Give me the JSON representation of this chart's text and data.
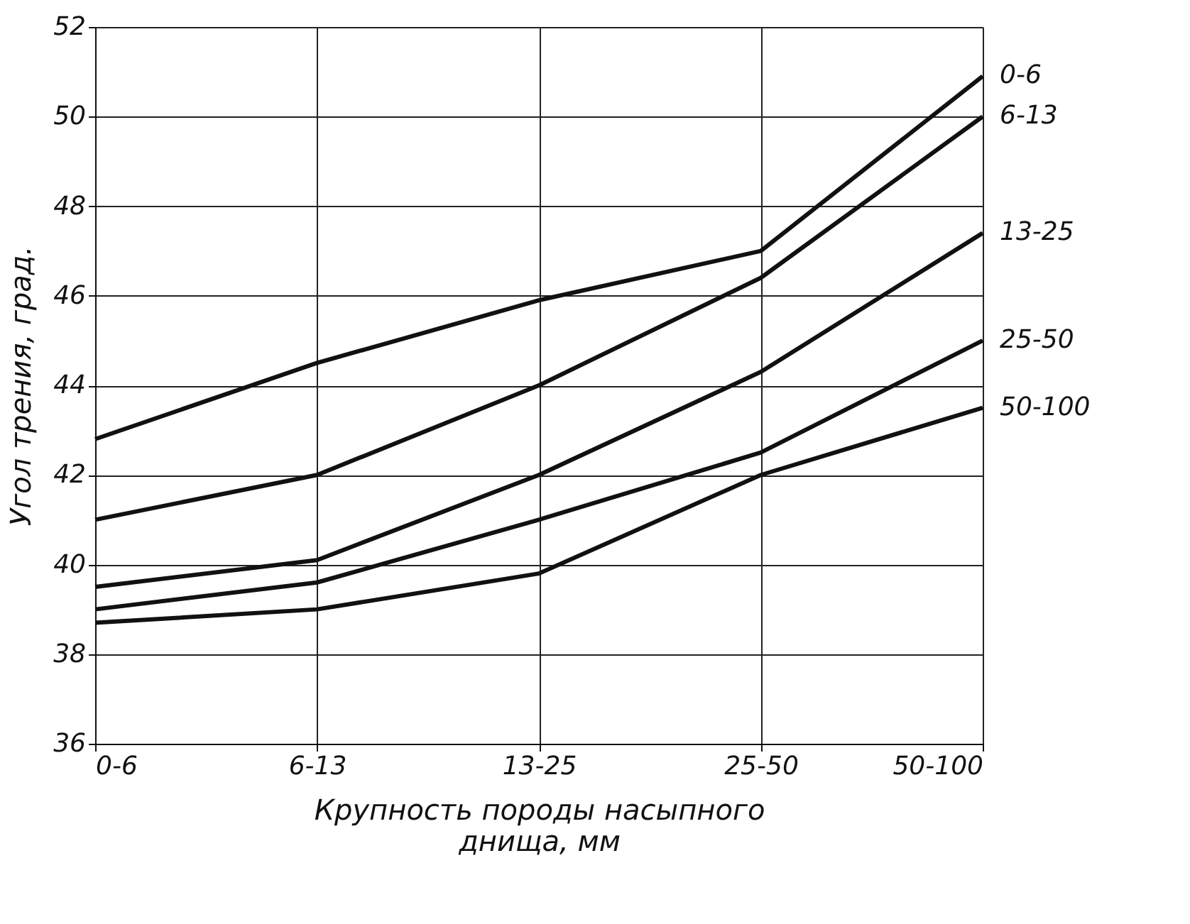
{
  "chart_data": {
    "type": "line",
    "xlabel": "Крупность породы насыпного\nднища, мм",
    "ylabel": "Угол трения, град.",
    "categories": [
      "0-6",
      "6-13",
      "13-25",
      "25-50",
      "50-100"
    ],
    "ylim": [
      36,
      52
    ],
    "yticks": [
      36,
      38,
      40,
      42,
      44,
      46,
      48,
      50,
      52
    ],
    "grid": true,
    "legend": false,
    "marker": "none",
    "line_style": "solid",
    "series": [
      {
        "name": "0-6",
        "color": "#111111",
        "values": [
          42.8,
          44.5,
          45.9,
          47.0,
          50.9
        ]
      },
      {
        "name": "6-13",
        "color": "#111111",
        "values": [
          41.0,
          42.0,
          44.0,
          46.4,
          50.0
        ]
      },
      {
        "name": "13-25",
        "color": "#111111",
        "values": [
          39.5,
          40.1,
          42.0,
          44.3,
          47.4
        ]
      },
      {
        "name": "25-50",
        "color": "#111111",
        "values": [
          39.0,
          39.6,
          41.0,
          42.5,
          45.0
        ]
      },
      {
        "name": "50-100",
        "color": "#111111",
        "values": [
          38.7,
          39.0,
          39.8,
          42.0,
          43.5
        ]
      }
    ]
  }
}
